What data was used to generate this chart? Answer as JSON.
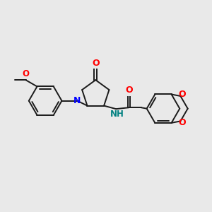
{
  "bg_color": "#e9e9e9",
  "bond_color": "#1a1a1a",
  "N_color": "#0000ff",
  "O_color": "#ff0000",
  "NH_color": "#008080",
  "figsize": [
    3.0,
    3.0
  ],
  "dpi": 100,
  "xlim": [
    0,
    12
  ],
  "ylim": [
    0,
    12
  ]
}
